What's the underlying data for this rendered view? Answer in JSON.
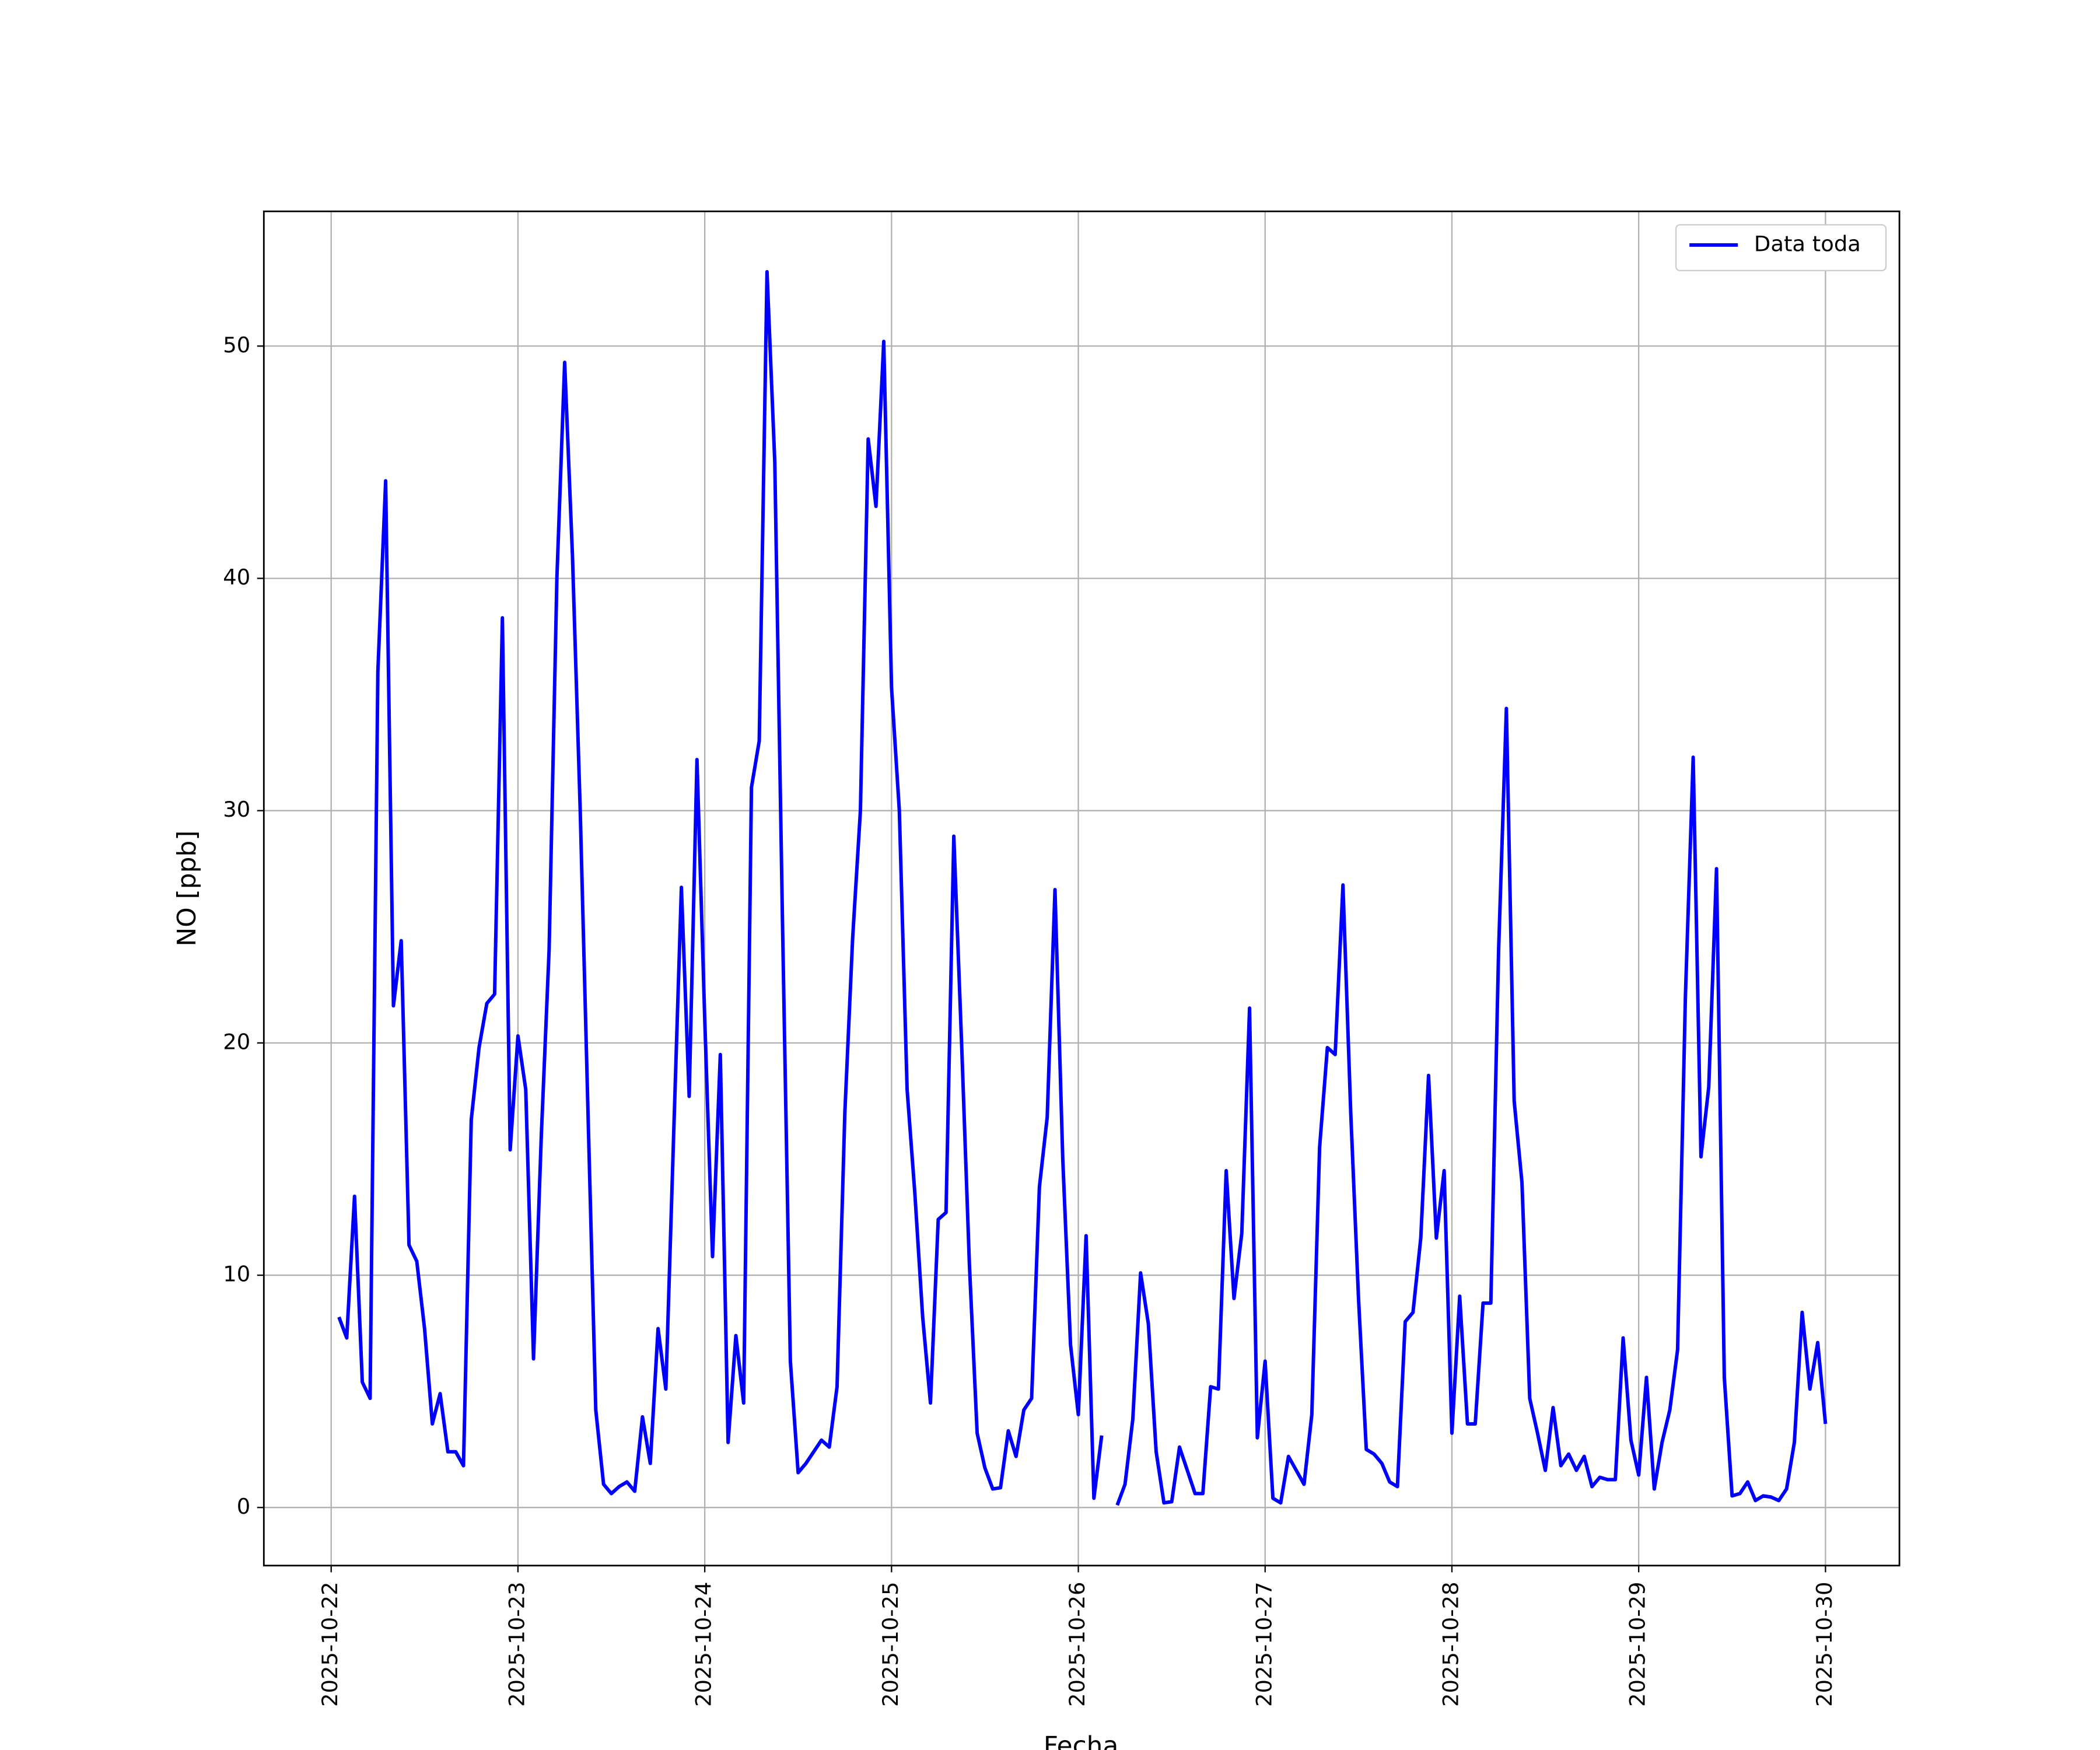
{
  "chart_data": {
    "type": "line",
    "xlabel": "Fecha",
    "ylabel": "NO [ppb]",
    "x": [
      "2025-10-22 01:00",
      "2025-10-22 02:00",
      "2025-10-22 03:00",
      "2025-10-22 04:00",
      "2025-10-22 05:00",
      "2025-10-22 06:00",
      "2025-10-22 07:00",
      "2025-10-22 08:00",
      "2025-10-22 09:00",
      "2025-10-22 10:00",
      "2025-10-22 11:00",
      "2025-10-22 12:00",
      "2025-10-22 13:00",
      "2025-10-22 14:00",
      "2025-10-22 15:00",
      "2025-10-22 16:00",
      "2025-10-22 17:00",
      "2025-10-22 18:00",
      "2025-10-22 19:00",
      "2025-10-22 20:00",
      "2025-10-22 21:00",
      "2025-10-22 22:00",
      "2025-10-22 23:00",
      "2025-10-23 00:00",
      "2025-10-23 01:00",
      "2025-10-23 02:00",
      "2025-10-23 03:00",
      "2025-10-23 04:00",
      "2025-10-23 05:00",
      "2025-10-23 06:00",
      "2025-10-23 07:00",
      "2025-10-23 08:00",
      "2025-10-23 09:00",
      "2025-10-23 10:00",
      "2025-10-23 11:00",
      "2025-10-23 12:00",
      "2025-10-23 13:00",
      "2025-10-23 14:00",
      "2025-10-23 15:00",
      "2025-10-23 16:00",
      "2025-10-23 17:00",
      "2025-10-23 18:00",
      "2025-10-23 19:00",
      "2025-10-23 20:00",
      "2025-10-23 21:00",
      "2025-10-23 22:00",
      "2025-10-23 23:00",
      "2025-10-24 00:00",
      "2025-10-24 01:00",
      "2025-10-24 02:00",
      "2025-10-24 03:00",
      "2025-10-24 04:00",
      "2025-10-24 05:00",
      "2025-10-24 06:00",
      "2025-10-24 07:00",
      "2025-10-24 08:00",
      "2025-10-24 09:00",
      "2025-10-24 10:00",
      "2025-10-24 11:00",
      "2025-10-24 12:00",
      "2025-10-24 13:00",
      "2025-10-24 14:00",
      "2025-10-24 15:00",
      "2025-10-24 16:00",
      "2025-10-24 17:00",
      "2025-10-24 18:00",
      "2025-10-24 19:00",
      "2025-10-24 20:00",
      "2025-10-24 21:00",
      "2025-10-24 22:00",
      "2025-10-24 23:00",
      "2025-10-25 00:00",
      "2025-10-25 01:00",
      "2025-10-25 02:00",
      "2025-10-25 03:00",
      "2025-10-25 04:00",
      "2025-10-25 05:00",
      "2025-10-25 06:00",
      "2025-10-25 07:00",
      "2025-10-25 08:00",
      "2025-10-25 09:00",
      "2025-10-25 10:00",
      "2025-10-25 11:00",
      "2025-10-25 12:00",
      "2025-10-25 13:00",
      "2025-10-25 14:00",
      "2025-10-25 15:00",
      "2025-10-25 16:00",
      "2025-10-25 17:00",
      "2025-10-25 18:00",
      "2025-10-25 19:00",
      "2025-10-25 20:00",
      "2025-10-25 21:00",
      "2025-10-25 22:00",
      "2025-10-25 23:00",
      "2025-10-26 00:00",
      "2025-10-26 01:00",
      "2025-10-26 02:00",
      "2025-10-26 03:00",
      "2025-10-26 04:00",
      "2025-10-26 05:00",
      "2025-10-26 06:00",
      "2025-10-26 07:00",
      "2025-10-26 08:00",
      "2025-10-26 09:00",
      "2025-10-26 10:00",
      "2025-10-26 11:00",
      "2025-10-26 12:00",
      "2025-10-26 13:00",
      "2025-10-26 14:00",
      "2025-10-26 15:00",
      "2025-10-26 16:00",
      "2025-10-26 17:00",
      "2025-10-26 18:00",
      "2025-10-26 19:00",
      "2025-10-26 20:00",
      "2025-10-26 21:00",
      "2025-10-26 22:00",
      "2025-10-26 23:00",
      "2025-10-27 00:00",
      "2025-10-27 01:00",
      "2025-10-27 02:00",
      "2025-10-27 03:00",
      "2025-10-27 04:00",
      "2025-10-27 05:00",
      "2025-10-27 06:00",
      "2025-10-27 07:00",
      "2025-10-27 08:00",
      "2025-10-27 09:00",
      "2025-10-27 10:00",
      "2025-10-27 11:00",
      "2025-10-27 12:00",
      "2025-10-27 13:00",
      "2025-10-27 14:00",
      "2025-10-27 15:00",
      "2025-10-27 16:00",
      "2025-10-27 17:00",
      "2025-10-27 18:00",
      "2025-10-27 19:00",
      "2025-10-27 20:00",
      "2025-10-27 21:00",
      "2025-10-27 22:00",
      "2025-10-27 23:00",
      "2025-10-28 00:00",
      "2025-10-28 01:00",
      "2025-10-28 02:00",
      "2025-10-28 03:00",
      "2025-10-28 04:00",
      "2025-10-28 05:00",
      "2025-10-28 06:00",
      "2025-10-28 07:00",
      "2025-10-28 08:00",
      "2025-10-28 09:00",
      "2025-10-28 10:00",
      "2025-10-28 11:00",
      "2025-10-28 12:00",
      "2025-10-28 13:00",
      "2025-10-28 14:00",
      "2025-10-28 15:00",
      "2025-10-28 16:00",
      "2025-10-28 17:00",
      "2025-10-28 18:00",
      "2025-10-28 19:00",
      "2025-10-28 20:00",
      "2025-10-28 21:00",
      "2025-10-28 22:00",
      "2025-10-28 23:00",
      "2025-10-29 00:00",
      "2025-10-29 01:00",
      "2025-10-29 02:00",
      "2025-10-29 03:00",
      "2025-10-29 04:00",
      "2025-10-29 05:00",
      "2025-10-29 06:00",
      "2025-10-29 07:00",
      "2025-10-29 08:00",
      "2025-10-29 09:00",
      "2025-10-29 10:00",
      "2025-10-29 11:00",
      "2025-10-29 12:00",
      "2025-10-29 13:00",
      "2025-10-29 14:00",
      "2025-10-29 15:00",
      "2025-10-29 16:00",
      "2025-10-29 17:00",
      "2025-10-29 18:00",
      "2025-10-29 19:00",
      "2025-10-29 20:00",
      "2025-10-29 21:00",
      "2025-10-29 22:00",
      "2025-10-29 23:00",
      "2025-10-30 00:00"
    ],
    "series": [
      {
        "name": "Data toda",
        "color": "#0000ff",
        "values": [
          8.2,
          7.3,
          13.4,
          5.4,
          4.7,
          36,
          44.2,
          21.6,
          24.4,
          11.3,
          10.6,
          7.7,
          3.6,
          4.9,
          2.4,
          2.4,
          1.8,
          16.7,
          19.8,
          21.7,
          22.1,
          38.3,
          15.4,
          20.3,
          18,
          6.4,
          16,
          24,
          40,
          49.3,
          41,
          30,
          17,
          4.2,
          1.0,
          0.6,
          0.9,
          1.1,
          0.7,
          3.9,
          1.9,
          7.7,
          5.1,
          16,
          26.7,
          17.7,
          32.2,
          21,
          10.8,
          19.5,
          2.8,
          7.4,
          4.5,
          31,
          33,
          53.2,
          45,
          25,
          6.3,
          1.5,
          1.9,
          2.4,
          2.9,
          2.6,
          5.2,
          17,
          24.5,
          30,
          46,
          43.1,
          50.2,
          35.3,
          30,
          18,
          13.5,
          8.2,
          4.5,
          12.4,
          12.7,
          28.9,
          20,
          10.5,
          3.2,
          1.7,
          0.8,
          0.85,
          3.3,
          2.2,
          4.2,
          4.7,
          13.8,
          16.8,
          26.6,
          15,
          7,
          4,
          11.7,
          0.4,
          3.1,
          null,
          0.1,
          1,
          3.8,
          10.1,
          7.9,
          2.4,
          0.2,
          0.25,
          2.6,
          1.6,
          0.6,
          0.6,
          5.2,
          5.1,
          14.5,
          9,
          11.8,
          21.5,
          3,
          6.3,
          0.4,
          0.2,
          2.2,
          1.6,
          1,
          4,
          15.5,
          19.8,
          19.5,
          26.8,
          17,
          9,
          2.5,
          2.3,
          1.9,
          1.1,
          0.9,
          8,
          8.4,
          11.6,
          18.6,
          11.6,
          14.5,
          3.2,
          9.1,
          3.6,
          3.6,
          8.8,
          8.8,
          24,
          34.4,
          17.5,
          14,
          4.7,
          3.2,
          1.6,
          4.3,
          1.8,
          2.3,
          1.6,
          2.2,
          0.9,
          1.3,
          1.2,
          1.2,
          7.3,
          2.9,
          1.4,
          5.6,
          0.8,
          2.8,
          4.2,
          6.8,
          22,
          32.3,
          15.1,
          18.1,
          27.5,
          5.6,
          0.5,
          0.6,
          1.1,
          0.3,
          0.5,
          0.45,
          0.3,
          0.8,
          2.8,
          8.4,
          5.1,
          7.1,
          3.6
        ]
      }
    ],
    "xlim": [
      "2025-10-21 15:21",
      "2025-10-30 09:30"
    ],
    "xticks": [
      "2025-10-22",
      "2025-10-23",
      "2025-10-24",
      "2025-10-25",
      "2025-10-26",
      "2025-10-27",
      "2025-10-28",
      "2025-10-29",
      "2025-10-30"
    ],
    "ylim": [
      -2.5,
      55.8
    ],
    "yticks": [
      0,
      10,
      20,
      30,
      40,
      50
    ],
    "grid": true,
    "legend": "upper right"
  }
}
